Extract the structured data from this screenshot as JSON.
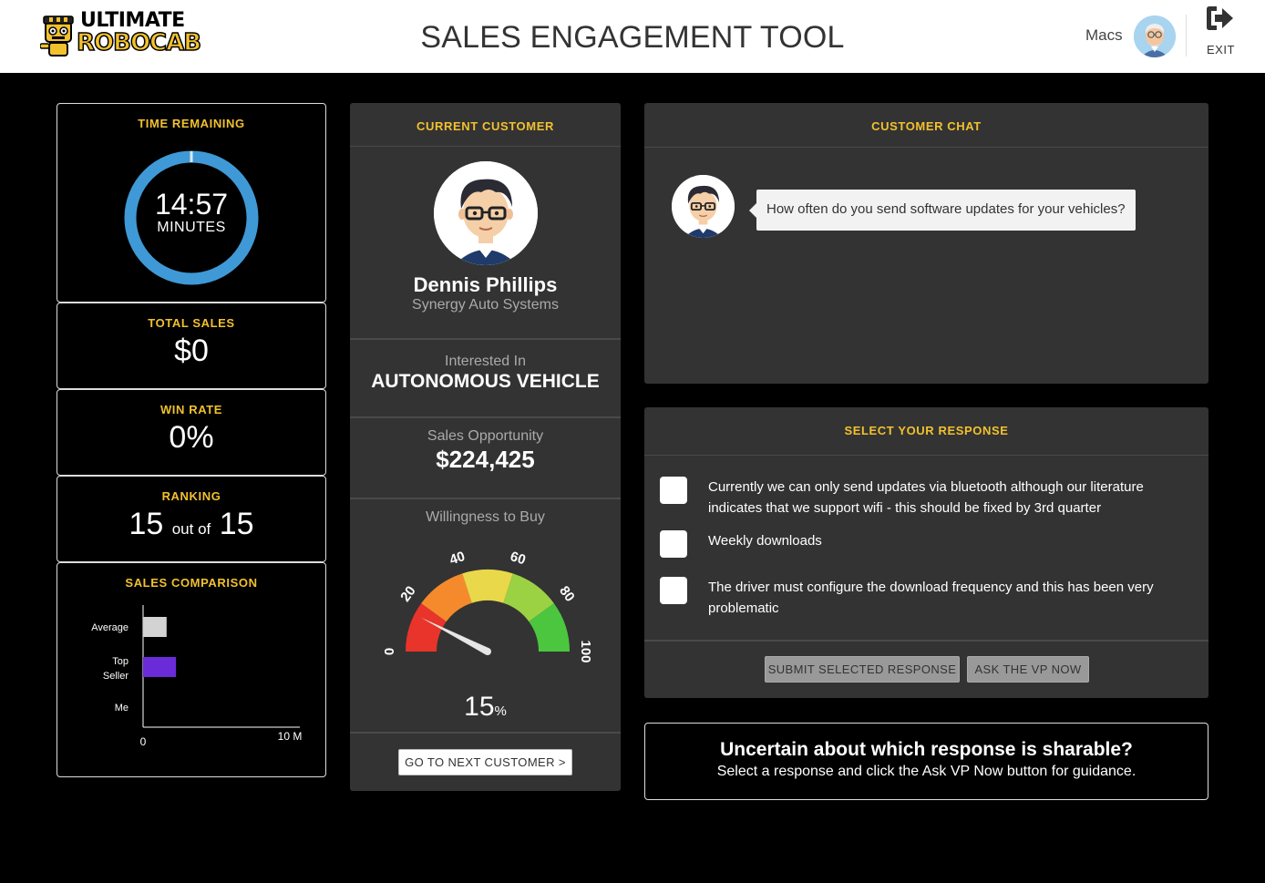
{
  "header": {
    "logo_line1": "ULTIMATE",
    "logo_line2": "ROBOCAB",
    "title": "SALES ENGAGEMENT TOOL",
    "user_name": "Macs",
    "exit_label": "EXIT"
  },
  "stats": {
    "time": {
      "label": "TIME REMAINING",
      "value": "14:57",
      "unit": "MINUTES",
      "remaining_fraction": 0.997
    },
    "sales": {
      "label": "TOTAL SALES",
      "value": "$0"
    },
    "win_rate": {
      "label": "WIN RATE",
      "value": "0%"
    },
    "ranking": {
      "label": "RANKING",
      "position": "15",
      "separator": "out of",
      "total": "15"
    },
    "comparison": {
      "label": "SALES COMPARISON"
    }
  },
  "chart_data": {
    "type": "bar",
    "orientation": "horizontal",
    "categories": [
      "Average",
      "Top Seller",
      "Me"
    ],
    "values": [
      1.5,
      2.1,
      0
    ],
    "colors": [
      "#d3d3d3",
      "#6a2bd8",
      "#ffffff"
    ],
    "xlim": [
      0,
      10
    ],
    "x_tick_labels": [
      "0",
      "10 M"
    ],
    "title": "SALES COMPARISON"
  },
  "customer": {
    "panel_title": "CURRENT CUSTOMER",
    "name": "Dennis Phillips",
    "company": "Synergy Auto Systems",
    "interest_label": "Interested In",
    "interest_value": "AUTONOMOUS VEHICLE",
    "opportunity_label": "Sales Opportunity",
    "opportunity_value": "$224,425",
    "willingness_label": "Willingness to Buy",
    "willingness_value": "15",
    "willingness_unit": "%",
    "gauge_ticks": [
      "0",
      "20",
      "40",
      "60",
      "80",
      "100"
    ],
    "gauge_colors": [
      "#e8342a",
      "#f58a2d",
      "#e9d84a",
      "#9bd243",
      "#4cc63f"
    ],
    "next_button": "GO TO NEXT CUSTOMER >"
  },
  "chat": {
    "panel_title": "CUSTOMER CHAT",
    "message": "How often do you send software updates for your vehicles?"
  },
  "responses": {
    "panel_title": "SELECT YOUR RESPONSE",
    "options": [
      {
        "text": "Currently we can only send updates via bluetooth although our literature indicates that we support wifi - this should be fixed by 3rd quarter",
        "checked": false
      },
      {
        "text": "Weekly downloads",
        "checked": false
      },
      {
        "text": "The driver must configure the download frequency and this has been very problematic",
        "checked": false
      }
    ],
    "submit_button": "SUBMIT SELECTED RESPONSE",
    "vp_button": "ASK THE VP NOW"
  },
  "tip": {
    "title": "Uncertain about which response is sharable?",
    "body": "Select a response and click the Ask VP Now button for guidance."
  }
}
